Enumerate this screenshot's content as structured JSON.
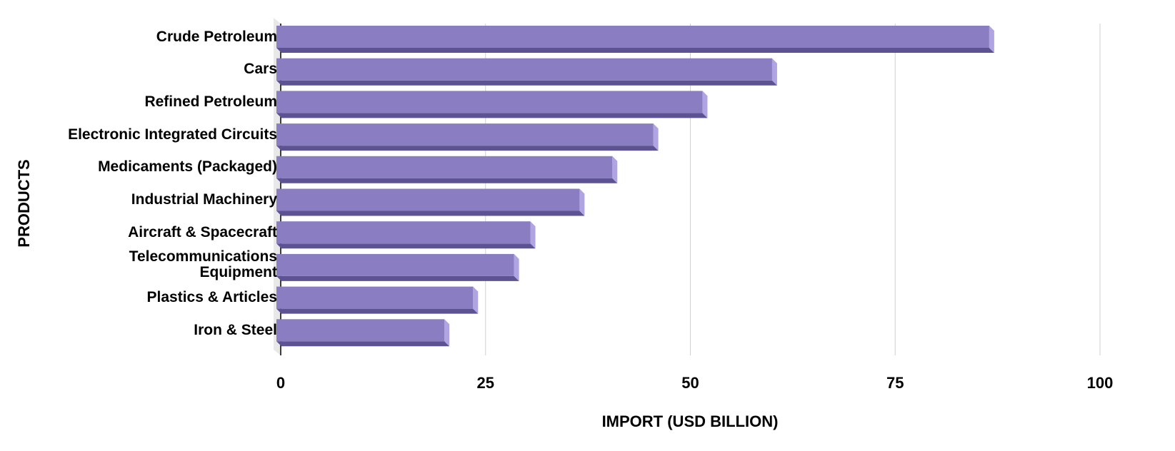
{
  "chart_data": {
    "type": "bar",
    "orientation": "horizontal",
    "x_label": "IMPORT (USD BILLION)",
    "y_label": "PRODUCTS",
    "categories": [
      "Crude Petroleum",
      "Cars",
      "Refined Petroleum",
      "Electronic Integrated Circuits",
      "Medicaments (Packaged)",
      "Industrial Machinery",
      "Aircraft & Spacecraft",
      "Telecommunications Equipment",
      "Plastics & Articles",
      "Iron & Steel"
    ],
    "values": [
      87,
      60.5,
      52,
      46,
      41,
      37,
      31,
      29,
      24,
      20.5
    ],
    "color": "#8b7dc2",
    "xlim": [
      0,
      100
    ],
    "xticks": [
      0,
      25,
      50,
      75,
      100
    ],
    "grid": true
  }
}
